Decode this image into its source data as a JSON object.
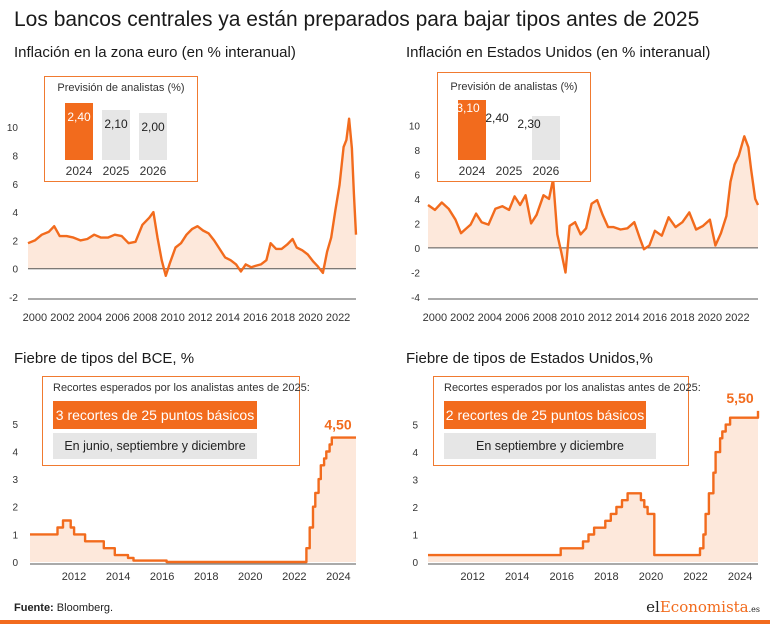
{
  "page": {
    "title": "Los bancos centrales ya están preparados para bajar tipos antes de 2025",
    "source_label": "Fuente:",
    "source_text": "Bloomberg.",
    "logo_prefix": "el",
    "logo_main": "Economista",
    "logo_suffix": ".es"
  },
  "colors": {
    "accent": "#f26b1d",
    "area": "#fde8db",
    "grey_bar": "#e6e6e6",
    "axis": "#333333"
  },
  "chart_data": [
    {
      "id": "infl_eu",
      "type": "area",
      "title": "Inflación en la zona euro (en % interanual)",
      "ylim": [
        -2,
        11
      ],
      "yticks": [
        -2,
        0,
        2,
        4,
        6,
        8,
        10
      ],
      "xlim": [
        1999.5,
        2023.3
      ],
      "xticks": [
        2000,
        2002,
        2004,
        2006,
        2008,
        2010,
        2012,
        2014,
        2016,
        2018,
        2020,
        2022
      ],
      "x": [
        1999.5,
        2000.0,
        2000.5,
        2001.0,
        2001.4,
        2001.8,
        2002.3,
        2002.8,
        2003.3,
        2003.8,
        2004.3,
        2004.8,
        2005.3,
        2005.8,
        2006.3,
        2006.8,
        2007.3,
        2007.8,
        2008.3,
        2008.6,
        2008.9,
        2009.2,
        2009.5,
        2009.8,
        2010.2,
        2010.6,
        2011.0,
        2011.4,
        2011.8,
        2012.2,
        2012.6,
        2013.0,
        2013.4,
        2013.8,
        2014.2,
        2014.6,
        2014.95,
        2015.3,
        2015.7,
        2016.0,
        2016.4,
        2016.8,
        2017.1,
        2017.5,
        2017.9,
        2018.3,
        2018.7,
        2019.0,
        2019.4,
        2019.8,
        2020.2,
        2020.5,
        2020.9,
        2021.2,
        2021.5,
        2021.8,
        2022.1,
        2022.4,
        2022.6,
        2022.8,
        2023.0,
        2023.15,
        2023.3
      ],
      "values": [
        1.8,
        2.0,
        2.4,
        2.6,
        3.0,
        2.3,
        2.3,
        2.2,
        2.0,
        2.1,
        2.4,
        2.2,
        2.2,
        2.4,
        2.3,
        1.8,
        1.9,
        3.1,
        3.6,
        4.0,
        2.2,
        0.6,
        -0.5,
        0.4,
        1.5,
        1.8,
        2.4,
        2.8,
        3.0,
        2.7,
        2.5,
        2.0,
        1.4,
        0.8,
        0.6,
        0.3,
        -0.2,
        0.3,
        0.1,
        0.2,
        0.3,
        0.6,
        1.8,
        1.4,
        1.4,
        1.7,
        2.1,
        1.5,
        1.3,
        1.0,
        0.5,
        0.2,
        -0.3,
        1.2,
        2.2,
        4.1,
        5.9,
        8.6,
        9.1,
        10.6,
        8.5,
        5.3,
        2.4
      ],
      "forecast": {
        "title": "Previsión de analistas (%)",
        "years": [
          "2024",
          "2025",
          "2026"
        ],
        "values": [
          2.4,
          2.1,
          2.0
        ],
        "value_labels": [
          "2,40",
          "2,10",
          "2,00"
        ]
      },
      "yticklabels": [
        "-2",
        "0",
        "2",
        "4",
        "6",
        "8",
        "10"
      ],
      "xticklabels": [
        "2000",
        "2002",
        "2004",
        "2006",
        "2008",
        "2010",
        "2012",
        "2014",
        "2016",
        "2018",
        "2020",
        "2022"
      ]
    },
    {
      "id": "infl_us",
      "type": "area",
      "title": "Inflación en Estados Unidos (en % interanual)",
      "ylim": [
        -4,
        11
      ],
      "yticks": [
        -4,
        -2,
        0,
        2,
        4,
        6,
        8,
        10
      ],
      "xlim": [
        1999.5,
        2023.5
      ],
      "xticks": [
        2000,
        2002,
        2004,
        2006,
        2008,
        2010,
        2012,
        2014,
        2016,
        2018,
        2020,
        2022
      ],
      "x": [
        1999.5,
        2000.0,
        2000.5,
        2001.0,
        2001.5,
        2001.9,
        2002.2,
        2002.6,
        2003.0,
        2003.4,
        2003.9,
        2004.4,
        2004.9,
        2005.4,
        2005.8,
        2006.2,
        2006.6,
        2007.0,
        2007.4,
        2007.9,
        2008.3,
        2008.6,
        2008.9,
        2009.2,
        2009.5,
        2009.8,
        2010.2,
        2010.6,
        2011.0,
        2011.4,
        2011.8,
        2012.2,
        2012.6,
        2013.0,
        2013.5,
        2014.0,
        2014.5,
        2014.9,
        2015.2,
        2015.6,
        2016.0,
        2016.5,
        2017.0,
        2017.5,
        2018.0,
        2018.5,
        2019.0,
        2019.5,
        2020.0,
        2020.4,
        2020.8,
        2021.2,
        2021.5,
        2021.8,
        2022.1,
        2022.5,
        2022.8,
        2023.0,
        2023.3,
        2023.5
      ],
      "values": [
        3.5,
        3.1,
        3.7,
        3.2,
        2.3,
        1.2,
        1.5,
        1.9,
        2.8,
        2.1,
        1.9,
        3.2,
        3.4,
        3.1,
        4.2,
        3.5,
        4.3,
        2.0,
        2.7,
        4.3,
        4.0,
        5.6,
        1.1,
        -0.4,
        -2.0,
        1.8,
        2.1,
        1.1,
        1.6,
        3.6,
        3.9,
        2.7,
        1.7,
        1.7,
        1.5,
        1.6,
        2.1,
        0.8,
        -0.1,
        0.2,
        1.4,
        1.0,
        2.5,
        1.7,
        2.1,
        2.9,
        1.5,
        1.8,
        2.3,
        0.2,
        1.2,
        2.6,
        5.4,
        6.8,
        7.5,
        9.1,
        8.2,
        6.4,
        4.0,
        3.5
      ],
      "forecast": {
        "title": "Previsión de analistas (%)",
        "years": [
          "2024",
          "2025",
          "2026"
        ],
        "values": [
          3.1,
          2.4,
          2.3
        ],
        "value_labels": [
          "3,10",
          "2,40",
          "2,30"
        ]
      },
      "yticklabels": [
        "-4",
        "-2",
        "0",
        "2",
        "4",
        "6",
        "8",
        "10"
      ],
      "xticklabels": [
        "2000",
        "2002",
        "2004",
        "2006",
        "2008",
        "2010",
        "2012",
        "2014",
        "2016",
        "2018",
        "2020",
        "2022"
      ]
    },
    {
      "id": "tipos_bce",
      "type": "area",
      "title": "Fiebre de tipos del BCE, %",
      "ylim": [
        0,
        5.5
      ],
      "yticks": [
        0,
        1,
        2,
        3,
        4,
        5
      ],
      "xlim": [
        2010.0,
        2024.8
      ],
      "xticks": [
        2012,
        2014,
        2016,
        2018,
        2020,
        2022,
        2024
      ],
      "x": [
        2010.0,
        2011.25,
        2011.5,
        2011.85,
        2012.0,
        2012.5,
        2013.35,
        2013.85,
        2014.45,
        2014.7,
        2016.2,
        2022.55,
        2022.7,
        2022.85,
        2022.95,
        2023.1,
        2023.2,
        2023.35,
        2023.45,
        2023.6,
        2023.7,
        2024.8
      ],
      "values": [
        1.0,
        1.25,
        1.5,
        1.25,
        1.0,
        0.75,
        0.5,
        0.25,
        0.15,
        0.05,
        0.0,
        0.5,
        1.25,
        2.0,
        2.5,
        3.0,
        3.5,
        3.75,
        4.0,
        4.25,
        4.5,
        4.5
      ],
      "step": true,
      "last_label": "4,50",
      "cuts": {
        "title": "Recortes esperados por los analistas antes de 2025:",
        "main": "3 recortes de 25 puntos básicos",
        "sub": "En junio, septiembre y diciembre"
      },
      "yticklabels": [
        "0",
        "1",
        "2",
        "3",
        "4",
        "5"
      ],
      "xticklabels": [
        "2012",
        "2014",
        "2016",
        "2018",
        "2020",
        "2022",
        "2024"
      ]
    },
    {
      "id": "tipos_fed",
      "type": "area",
      "title": "Fiebre de tipos de Estados Unidos,%",
      "ylim": [
        0,
        5.75
      ],
      "yticks": [
        0,
        1,
        2,
        3,
        4,
        5
      ],
      "xlim": [
        2010.0,
        2024.8
      ],
      "xticks": [
        2012,
        2014,
        2016,
        2018,
        2020,
        2022,
        2024
      ],
      "x": [
        2010.0,
        2015.95,
        2016.95,
        2017.2,
        2017.45,
        2017.95,
        2018.2,
        2018.45,
        2018.7,
        2018.95,
        2019.55,
        2019.7,
        2019.85,
        2020.15,
        2020.25,
        2022.2,
        2022.35,
        2022.45,
        2022.6,
        2022.8,
        2022.9,
        2023.1,
        2023.2,
        2023.35,
        2023.55,
        2024.8
      ],
      "values": [
        0.25,
        0.5,
        0.75,
        1.0,
        1.25,
        1.5,
        1.75,
        2.0,
        2.25,
        2.5,
        2.25,
        2.0,
        1.75,
        0.25,
        0.25,
        0.5,
        1.0,
        1.75,
        2.5,
        3.25,
        4.0,
        4.5,
        4.75,
        5.0,
        5.25,
        5.5
      ],
      "step": true,
      "last_label": "5,50",
      "cuts": {
        "title": "Recortes esperados por los analistas antes de 2025:",
        "main": "2 recortes de 25 puntos básicos",
        "sub": "En septiembre y diciembre"
      },
      "yticklabels": [
        "0",
        "1",
        "2",
        "3",
        "4",
        "5"
      ],
      "xticklabels": [
        "2012",
        "2014",
        "2016",
        "2018",
        "2020",
        "2022",
        "2024"
      ]
    }
  ]
}
